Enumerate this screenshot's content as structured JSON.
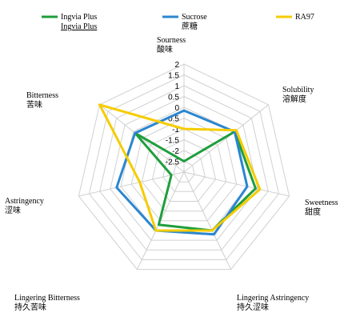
{
  "chart_data": {
    "type": "radar",
    "axes": [
      {
        "en": "Sourness",
        "zh": "酸味"
      },
      {
        "en": "Solubility",
        "zh": "溶解度"
      },
      {
        "en": "Sweetness",
        "zh": "甜度"
      },
      {
        "en": "Lingering Astringency",
        "zh": "持久涩味"
      },
      {
        "en": "Lingering Bitterness",
        "zh": "持久苦味"
      },
      {
        "en": "Astringency",
        "zh": "涩味"
      },
      {
        "en": "Bitterness",
        "zh": "苦味"
      }
    ],
    "rlim": [
      -3,
      2
    ],
    "ticks": [
      "2",
      "1.5",
      "1",
      "0.5",
      "0",
      "-0.5",
      "-1",
      "-1.5",
      "-2",
      "-2.5"
    ],
    "tick_values": [
      2,
      1.5,
      1,
      0.5,
      0,
      -0.5,
      -1,
      -1.5,
      -2,
      -2.5
    ],
    "grid": true,
    "legend_position": "top",
    "series": [
      {
        "name": "Ingvia Plus",
        "name_sub": "Ingvia Plus",
        "color": "#1e9e3c",
        "values": [
          -2.5,
          0.0,
          0.4,
          0.0,
          -0.3,
          -2.4,
          -0.1
        ]
      },
      {
        "name": "Sucrose",
        "name_sub": "蔗糖",
        "color": "#2b86d0",
        "values": [
          -0.15,
          0.0,
          0.0,
          0.2,
          0.0,
          0.2,
          -0.1
        ]
      },
      {
        "name": "RA97",
        "name_sub": "",
        "color": "#f5cc00",
        "values": [
          -1.0,
          0.1,
          0.6,
          0.0,
          0.0,
          -0.9,
          2.0
        ]
      }
    ]
  }
}
